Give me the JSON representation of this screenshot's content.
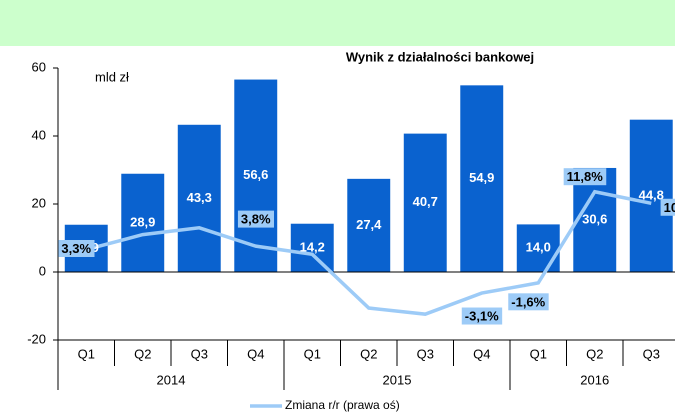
{
  "chart_data": {
    "type": "bar_line",
    "title": "Wynik z działalności bankowej",
    "unit_note": "mld zł",
    "categories": [
      "Q1",
      "Q2",
      "Q3",
      "Q4",
      "Q1",
      "Q2",
      "Q3",
      "Q4",
      "Q1",
      "Q2",
      "Q3"
    ],
    "year_groups": [
      {
        "label": "2014",
        "count": 4
      },
      {
        "label": "2015",
        "count": 4
      },
      {
        "label": "2016",
        "count": 3
      }
    ],
    "series": [
      {
        "name": "Wynik",
        "type": "bar",
        "color": "#0a62cf",
        "values": [
          13.9,
          28.9,
          43.3,
          56.6,
          14.2,
          27.4,
          40.7,
          54.9,
          14.0,
          30.6,
          44.8
        ],
        "value_labels": [
          "13,9",
          "28,9",
          "43,3",
          "56,6",
          "14,2",
          "27,4",
          "40,7",
          "54,9",
          "14,0",
          "30,6",
          "44,8"
        ]
      },
      {
        "name": "Zmiana r/r (prawa oś)",
        "type": "line",
        "axis": "y2",
        "color": "#9dcbf7",
        "values": [
          3.3,
          5.5,
          6.5,
          3.8,
          2.6,
          -5.3,
          -6.2,
          -3.1,
          -1.6,
          11.8,
          10.1
        ],
        "value_labels": [
          "3,3%",
          null,
          null,
          "3,8%",
          null,
          null,
          null,
          "-3,1%",
          "-1,6%",
          "11,8%",
          "10,1"
        ]
      }
    ],
    "ylim": [
      -20,
      60
    ],
    "yticks": [
      -20,
      0,
      20,
      40,
      60
    ],
    "y2lim": [
      -10,
      30
    ],
    "legend": "bottom"
  }
}
